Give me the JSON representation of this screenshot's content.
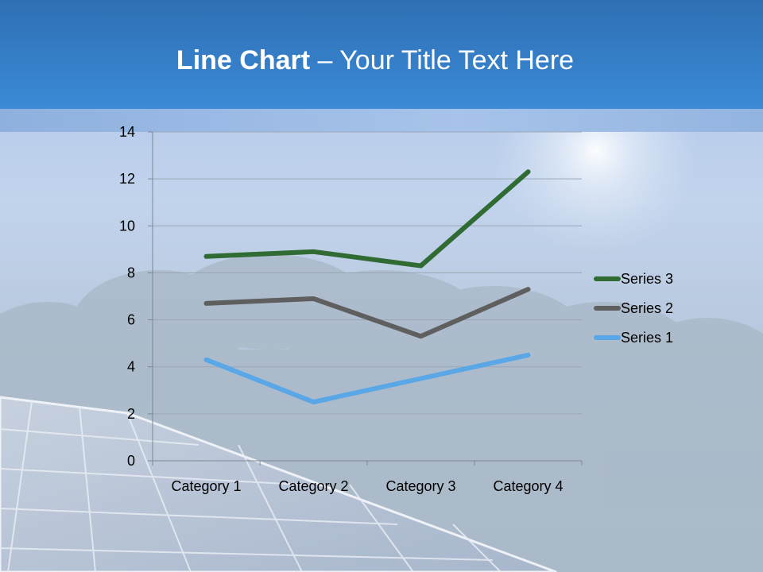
{
  "slide": {
    "title_bold": "Line Chart",
    "title_rest": " – Your Title Text Here"
  },
  "chart_data": {
    "type": "line",
    "title": "",
    "xlabel": "",
    "ylabel": "",
    "categories": [
      "Category 1",
      "Category 2",
      "Category 3",
      "Category 4"
    ],
    "ylim": [
      0,
      14
    ],
    "yticks": [
      0,
      2,
      4,
      6,
      8,
      10,
      12,
      14
    ],
    "grid": true,
    "legend_position": "right",
    "series": [
      {
        "name": "Series 1",
        "values": [
          4.3,
          2.5,
          3.5,
          4.5
        ],
        "color": "#5aa7e8"
      },
      {
        "name": "Series 2",
        "values": [
          6.7,
          6.9,
          5.3,
          7.3
        ],
        "color": "#5f5f5f"
      },
      {
        "name": "Series 3",
        "values": [
          8.7,
          8.9,
          8.3,
          12.3
        ],
        "color": "#2f6b32"
      }
    ]
  }
}
